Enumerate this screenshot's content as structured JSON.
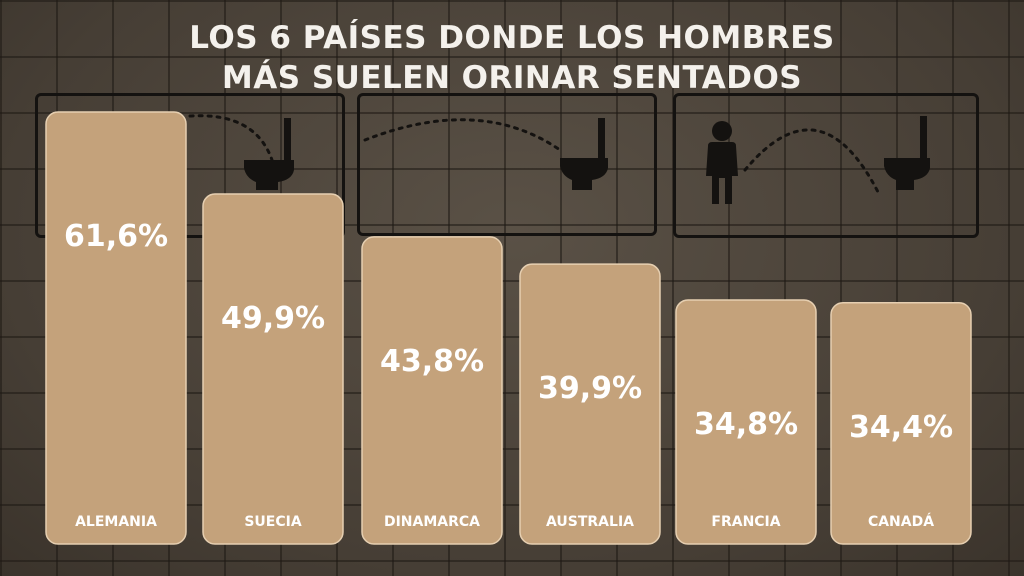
{
  "title": {
    "line1": "LOS 6 PAÍSES DONDE LOS HOMBRES",
    "line2": "MÁS SUELEN ORINAR SENTADOS"
  },
  "colors": {
    "bar_fill": "#c4a27b",
    "bar_border": "#e6cfb1",
    "background": "#4a4238",
    "text": "#ffffff",
    "panel_border": "#141210"
  },
  "icons": [
    "toilet-icon",
    "man-standing-icon"
  ],
  "chart_data": {
    "type": "bar",
    "title": "LOS 6 PAÍSES DONDE LOS HOMBRES MÁS SUELEN ORINAR SENTADOS",
    "categories": [
      "ALEMANIA",
      "SUECIA",
      "DINAMARCA",
      "AUSTRALIA",
      "FRANCIA",
      "CANADÁ"
    ],
    "values": [
      61.6,
      49.9,
      43.8,
      39.9,
      34.8,
      34.4
    ],
    "value_labels": [
      "61,6%",
      "49,9%",
      "43,8%",
      "39,9%",
      "34,8%",
      "34,4%"
    ],
    "unit": "%",
    "xlabel": "",
    "ylabel": "",
    "ylim": [
      0,
      61.6
    ],
    "grid": false,
    "legend": "none"
  }
}
